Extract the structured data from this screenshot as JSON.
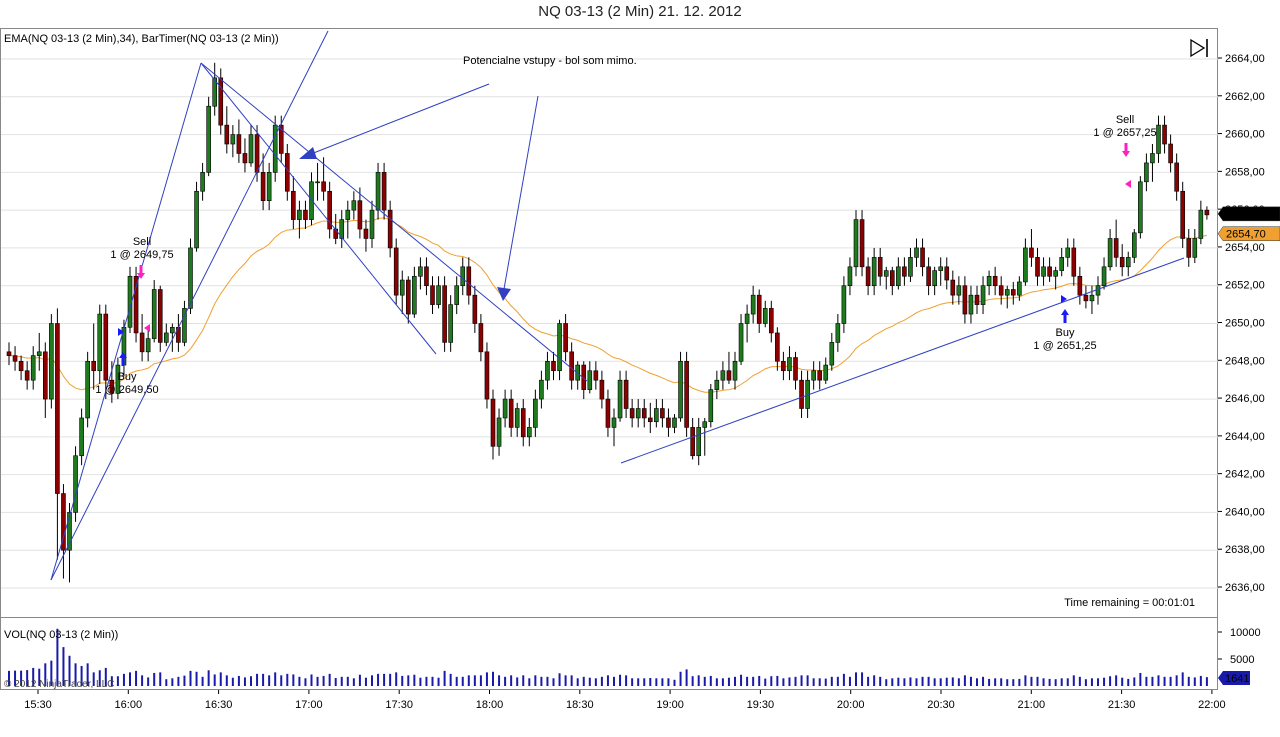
{
  "window": {
    "title": "NQ 03-13 (2 Min)  21. 12. 2012"
  },
  "price_panel": {
    "indicators_label": "EMA(NQ 03-13 (2 Min),34), BarTimer(NQ 03-13 (2 Min))",
    "annotation": "Potencialne vstupy - bol som mimo.",
    "timer_text": "Time remaining = 00:01:01",
    "last_price": "2655,75",
    "ema_price": "2654,70",
    "ylim": [
      2635,
      2665.5
    ],
    "y_ticks": [
      "2636,00",
      "2638,00",
      "2640,00",
      "2642,00",
      "2644,00",
      "2646,00",
      "2648,00",
      "2650,00",
      "2652,00",
      "2654,00",
      "2656,00",
      "2658,00",
      "2660,00",
      "2662,00",
      "2664,00"
    ],
    "colors": {
      "up": "#1f7a1f",
      "down": "#8b0000",
      "wick": "#000000",
      "ema": "#f0a030",
      "trendline": "#3040c0",
      "last_price_bg": "#000000",
      "ema_bg": "#f0a030",
      "vol_bar": "#1a1aaa",
      "buy_arrow": "#1a1aff",
      "sell_arrow": "#ff20c0"
    },
    "trades": [
      {
        "side": "Sell",
        "text1": "Sell",
        "text2": "1 @ 2649,75"
      },
      {
        "side": "Buy",
        "text1": "Buy",
        "text2": "1 @ 2649,50"
      },
      {
        "side": "Sell",
        "text1": "Sell",
        "text2": "1 @ 2657,25"
      },
      {
        "side": "Buy",
        "text1": "Buy",
        "text2": "1 @ 2651,25"
      }
    ]
  },
  "volume_panel": {
    "label": "VOL(NQ 03-13 (2 Min))",
    "y_ticks": [
      "10000",
      "5000"
    ],
    "last_volume": "1641",
    "copyright": "© 2012 NinjaTrader, LLC"
  },
  "time_axis": {
    "ticks": [
      "15:30",
      "16:00",
      "16:30",
      "17:00",
      "17:30",
      "18:00",
      "18:30",
      "19:00",
      "19:30",
      "20:00",
      "20:30",
      "21:00",
      "21:30",
      "22:00"
    ]
  },
  "chart_data": {
    "type": "candlestick",
    "instrument": "NQ 03-13",
    "interval": "2 Min",
    "start_time": "15:14",
    "ohlc": [
      [
        2648.5,
        2649,
        2647.8,
        2648.3
      ],
      [
        2648.3,
        2648.8,
        2647.5,
        2648
      ],
      [
        2648,
        2648.3,
        2647,
        2647.5
      ],
      [
        2647.5,
        2648,
        2646.5,
        2647
      ],
      [
        2647,
        2648.8,
        2646.5,
        2648.3
      ],
      [
        2648.3,
        2649.5,
        2647.5,
        2648.5
      ],
      [
        2648.5,
        2649,
        2645,
        2646
      ],
      [
        2646,
        2650.5,
        2645.5,
        2650
      ],
      [
        2650,
        2650.8,
        2637.5,
        2641
      ],
      [
        2641,
        2641.5,
        2636.5,
        2638
      ],
      [
        2638,
        2640.5,
        2636.3,
        2640
      ],
      [
        2640,
        2643.5,
        2639.5,
        2643
      ],
      [
        2643,
        2645.5,
        2642.5,
        2645
      ],
      [
        2645,
        2648.5,
        2644.5,
        2648
      ],
      [
        2648,
        2650,
        2646.5,
        2647.5
      ],
      [
        2647.5,
        2651,
        2646.8,
        2650.5
      ],
      [
        2650.5,
        2651,
        2646,
        2647
      ],
      [
        2647,
        2648,
        2645.8,
        2646.3
      ],
      [
        2646.3,
        2648.2,
        2646,
        2647.8
      ],
      [
        2647.8,
        2650.2,
        2647.2,
        2649.8
      ],
      [
        2649.8,
        2653,
        2649.5,
        2652.5
      ],
      [
        2652.5,
        2653,
        2649,
        2649.5
      ],
      [
        2649.5,
        2650.5,
        2648,
        2648.5
      ],
      [
        2648.5,
        2649.8,
        2648,
        2649.2
      ],
      [
        2649.2,
        2652.3,
        2649,
        2651.8
      ],
      [
        2651.8,
        2652,
        2648.5,
        2649
      ],
      [
        2649,
        2650,
        2648.8,
        2649.5
      ],
      [
        2649.5,
        2650,
        2648.5,
        2649.8
      ],
      [
        2649.8,
        2650.5,
        2648.5,
        2649
      ],
      [
        2649,
        2651.2,
        2648.8,
        2650.8
      ],
      [
        2650.8,
        2654.5,
        2650.5,
        2654
      ],
      [
        2654,
        2657.5,
        2653.8,
        2657
      ],
      [
        2657,
        2658.5,
        2656.5,
        2658
      ],
      [
        2658,
        2662,
        2657.8,
        2661.5
      ],
      [
        2661.5,
        2663.8,
        2661,
        2663
      ],
      [
        2663,
        2663.5,
        2660,
        2660.5
      ],
      [
        2660.5,
        2661.5,
        2659,
        2659.5
      ],
      [
        2659.5,
        2660.5,
        2658.8,
        2660
      ],
      [
        2660,
        2660.8,
        2658.5,
        2659
      ],
      [
        2659,
        2659.8,
        2658,
        2658.5
      ],
      [
        2658.5,
        2660.5,
        2658.3,
        2660
      ],
      [
        2660,
        2660.5,
        2657.5,
        2658
      ],
      [
        2658,
        2659,
        2656,
        2656.5
      ],
      [
        2656.5,
        2658.5,
        2656,
        2658
      ],
      [
        2658,
        2661,
        2657.5,
        2660.5
      ],
      [
        2660.5,
        2661,
        2658.5,
        2659
      ],
      [
        2659,
        2659.5,
        2656.5,
        2657
      ],
      [
        2657,
        2657.8,
        2655,
        2655.5
      ],
      [
        2655.5,
        2656.5,
        2654.5,
        2656
      ],
      [
        2656,
        2656.5,
        2655,
        2655.5
      ],
      [
        2655.5,
        2658,
        2655.2,
        2657.5
      ],
      [
        2657.5,
        2658.5,
        2656.5,
        2657.5
      ],
      [
        2657.5,
        2658.8,
        2656.5,
        2657
      ],
      [
        2657,
        2657.5,
        2654.5,
        2655
      ],
      [
        2655,
        2655.8,
        2654.2,
        2654.5
      ],
      [
        2654.5,
        2656,
        2654,
        2655.5
      ],
      [
        2655.5,
        2656.5,
        2654.5,
        2656
      ],
      [
        2656,
        2657,
        2655.5,
        2656.5
      ],
      [
        2656.5,
        2657.2,
        2654.5,
        2655
      ],
      [
        2655,
        2655.5,
        2653.8,
        2654.5
      ],
      [
        2654.5,
        2656.5,
        2654,
        2656
      ],
      [
        2656,
        2658.5,
        2655.5,
        2658
      ],
      [
        2658,
        2658.5,
        2655.5,
        2656
      ],
      [
        2656,
        2656.5,
        2653.5,
        2654
      ],
      [
        2654,
        2654.5,
        2651,
        2651.5
      ],
      [
        2651.5,
        2652.8,
        2650.5,
        2652.3
      ],
      [
        2652.3,
        2652.5,
        2650,
        2650.5
      ],
      [
        2650.5,
        2653,
        2650.3,
        2652.5
      ],
      [
        2652.5,
        2653.5,
        2651.8,
        2653
      ],
      [
        2653,
        2653.5,
        2651.5,
        2652
      ],
      [
        2652,
        2652.5,
        2650.5,
        2651
      ],
      [
        2651,
        2652.5,
        2650.8,
        2652
      ],
      [
        2652,
        2652.5,
        2648.5,
        2649
      ],
      [
        2649,
        2651.5,
        2648.5,
        2651
      ],
      [
        2651,
        2652.5,
        2650.5,
        2652
      ],
      [
        2652,
        2653.5,
        2651.5,
        2653
      ],
      [
        2653,
        2653.5,
        2651,
        2651.5
      ],
      [
        2651.5,
        2652,
        2649.5,
        2650
      ],
      [
        2650,
        2650.5,
        2648,
        2648.5
      ],
      [
        2648.5,
        2649,
        2645.5,
        2646
      ],
      [
        2646,
        2646.5,
        2642.8,
        2643.5
      ],
      [
        2643.5,
        2645.5,
        2643,
        2645
      ],
      [
        2645,
        2646.5,
        2644.5,
        2646
      ],
      [
        2646,
        2646.5,
        2644,
        2644.5
      ],
      [
        2644.5,
        2645.8,
        2644,
        2645.5
      ],
      [
        2645.5,
        2646,
        2643.5,
        2644
      ],
      [
        2644,
        2645,
        2643.5,
        2644.5
      ],
      [
        2644.5,
        2646.5,
        2644,
        2646
      ],
      [
        2646,
        2647.5,
        2645.5,
        2647
      ],
      [
        2647,
        2648.5,
        2646.5,
        2648
      ],
      [
        2648,
        2648.5,
        2647,
        2647.5
      ],
      [
        2647.5,
        2650.2,
        2647,
        2650
      ],
      [
        2650,
        2650.5,
        2648,
        2648.5
      ],
      [
        2648.5,
        2649,
        2646.5,
        2647
      ],
      [
        2647,
        2648,
        2646.5,
        2647.8
      ],
      [
        2647.8,
        2648,
        2646,
        2646.5
      ],
      [
        2646.5,
        2648,
        2646.3,
        2647.5
      ],
      [
        2647.5,
        2648,
        2646.5,
        2647
      ],
      [
        2647,
        2647.5,
        2645.5,
        2646
      ],
      [
        2646,
        2646.5,
        2644,
        2644.5
      ],
      [
        2644.5,
        2645.5,
        2643.5,
        2645
      ],
      [
        2645,
        2647.5,
        2644.8,
        2647
      ],
      [
        2647,
        2647.5,
        2645,
        2645.5
      ],
      [
        2645.5,
        2646,
        2644.5,
        2645
      ],
      [
        2645,
        2646,
        2644.5,
        2645.5
      ],
      [
        2645.5,
        2646,
        2644.5,
        2645
      ],
      [
        2645,
        2645.8,
        2644.2,
        2644.8
      ],
      [
        2644.8,
        2646,
        2644.5,
        2645.5
      ],
      [
        2645.5,
        2646,
        2644.5,
        2645
      ],
      [
        2645,
        2645.5,
        2644,
        2644.5
      ],
      [
        2644.5,
        2645.2,
        2644.2,
        2645
      ],
      [
        2645,
        2648.5,
        2644.8,
        2648
      ],
      [
        2648,
        2648.5,
        2644,
        2644.5
      ],
      [
        2644.5,
        2645,
        2642.8,
        2643
      ],
      [
        2643,
        2645,
        2642.5,
        2644.5
      ],
      [
        2644.5,
        2645,
        2643,
        2644.8
      ],
      [
        2644.8,
        2646.8,
        2644.5,
        2646.5
      ],
      [
        2646.5,
        2647.5,
        2646,
        2647
      ],
      [
        2647,
        2648,
        2646.5,
        2647.5
      ],
      [
        2647.5,
        2648.5,
        2646.8,
        2647
      ],
      [
        2647,
        2648.5,
        2646.5,
        2648
      ],
      [
        2648,
        2650.5,
        2647.8,
        2650
      ],
      [
        2650,
        2651,
        2649,
        2650.5
      ],
      [
        2650.5,
        2652,
        2650,
        2651.5
      ],
      [
        2651.5,
        2651.8,
        2649.5,
        2650
      ],
      [
        2650,
        2651.2,
        2649.8,
        2650.8
      ],
      [
        2650.8,
        2651.2,
        2649,
        2649.5
      ],
      [
        2649.5,
        2649.8,
        2647.5,
        2648
      ],
      [
        2648,
        2648.5,
        2647,
        2647.5
      ],
      [
        2647.5,
        2648.8,
        2647,
        2648.2
      ],
      [
        2648.2,
        2648.5,
        2646.5,
        2647
      ],
      [
        2647,
        2647.5,
        2645,
        2645.5
      ],
      [
        2645.5,
        2647.5,
        2645,
        2647
      ],
      [
        2647,
        2648,
        2646.5,
        2647.5
      ],
      [
        2647.5,
        2648,
        2646.5,
        2647
      ],
      [
        2647,
        2648.2,
        2646.8,
        2647.8
      ],
      [
        2647.8,
        2649.5,
        2647.5,
        2649
      ],
      [
        2649,
        2650.5,
        2648.5,
        2650
      ],
      [
        2650,
        2652.5,
        2649.5,
        2652
      ],
      [
        2652,
        2653.5,
        2651.5,
        2653
      ],
      [
        2653,
        2656,
        2652.5,
        2655.5
      ],
      [
        2655.5,
        2656,
        2652.5,
        2653
      ],
      [
        2653,
        2653.5,
        2651.5,
        2652
      ],
      [
        2652,
        2654,
        2651.5,
        2653.5
      ],
      [
        2653.5,
        2654,
        2652,
        2652.5
      ],
      [
        2652.5,
        2653,
        2651.8,
        2652.8
      ],
      [
        2652.8,
        2653,
        2651.5,
        2652
      ],
      [
        2652,
        2653.5,
        2651.8,
        2653
      ],
      [
        2653,
        2653.5,
        2652,
        2652.5
      ],
      [
        2652.5,
        2654,
        2652.2,
        2653.5
      ],
      [
        2653.5,
        2654.5,
        2653,
        2654
      ],
      [
        2654,
        2654.5,
        2652.5,
        2653
      ],
      [
        2653,
        2653.5,
        2651.5,
        2652
      ],
      [
        2652,
        2653,
        2651.5,
        2652.8
      ],
      [
        2652.8,
        2653.5,
        2652,
        2653
      ],
      [
        2653,
        2653.5,
        2651.8,
        2652.3
      ],
      [
        2652.3,
        2652.8,
        2651,
        2651.5
      ],
      [
        2651.5,
        2652.5,
        2651,
        2652
      ],
      [
        2652,
        2652.5,
        2650,
        2650.5
      ],
      [
        2650.5,
        2652,
        2650,
        2651.5
      ],
      [
        2651.5,
        2652,
        2650.5,
        2651
      ],
      [
        2651,
        2652.5,
        2650.5,
        2652
      ],
      [
        2652,
        2652.8,
        2651.5,
        2652.5
      ],
      [
        2652.5,
        2653,
        2651.5,
        2652
      ],
      [
        2652,
        2652.5,
        2651,
        2651.5
      ],
      [
        2651.5,
        2652,
        2650.8,
        2651.8
      ],
      [
        2651.8,
        2652.2,
        2651,
        2651.5
      ],
      [
        2651.5,
        2652.5,
        2651.2,
        2652.2
      ],
      [
        2652.2,
        2654.5,
        2652,
        2654
      ],
      [
        2654,
        2655,
        2653,
        2653.5
      ],
      [
        2653.5,
        2654,
        2652,
        2652.5
      ],
      [
        2652.5,
        2653.5,
        2652,
        2653
      ],
      [
        2653,
        2653.5,
        2652.2,
        2652.5
      ],
      [
        2652.5,
        2653,
        2651.8,
        2652.8
      ],
      [
        2652.8,
        2654,
        2652.5,
        2653.5
      ],
      [
        2653.5,
        2654.5,
        2653,
        2654
      ],
      [
        2654,
        2654.5,
        2652,
        2652.5
      ],
      [
        2652.5,
        2653,
        2651,
        2651.5
      ],
      [
        2651.5,
        2652,
        2650.8,
        2651.2
      ],
      [
        2651.2,
        2652,
        2650.5,
        2651.5
      ],
      [
        2651.5,
        2652.5,
        2651,
        2652
      ],
      [
        2652,
        2653.5,
        2651.8,
        2653
      ],
      [
        2653,
        2655,
        2652.8,
        2654.5
      ],
      [
        2654.5,
        2655.5,
        2653,
        2653.5
      ],
      [
        2653.5,
        2654.2,
        2652.5,
        2653
      ],
      [
        2653,
        2653.8,
        2652.5,
        2653.5
      ],
      [
        2653.5,
        2655,
        2653.2,
        2654.8
      ],
      [
        2654.8,
        2657.8,
        2654.5,
        2657.5
      ],
      [
        2657.5,
        2659,
        2657,
        2658.5
      ],
      [
        2658.5,
        2659.5,
        2657.5,
        2659
      ],
      [
        2659,
        2661,
        2658.5,
        2660.5
      ],
      [
        2660.5,
        2661,
        2659,
        2659.5
      ],
      [
        2659.5,
        2660,
        2658,
        2658.5
      ],
      [
        2658.5,
        2659,
        2656.5,
        2657
      ],
      [
        2657,
        2657.5,
        2654,
        2654.5
      ],
      [
        2654.5,
        2655,
        2653,
        2653.5
      ],
      [
        2653.5,
        2655,
        2653.2,
        2654.5
      ],
      [
        2654.5,
        2656.5,
        2654.2,
        2656
      ],
      [
        2656,
        2656.2,
        2655.5,
        2655.75
      ]
    ],
    "ema_period": 34
  }
}
